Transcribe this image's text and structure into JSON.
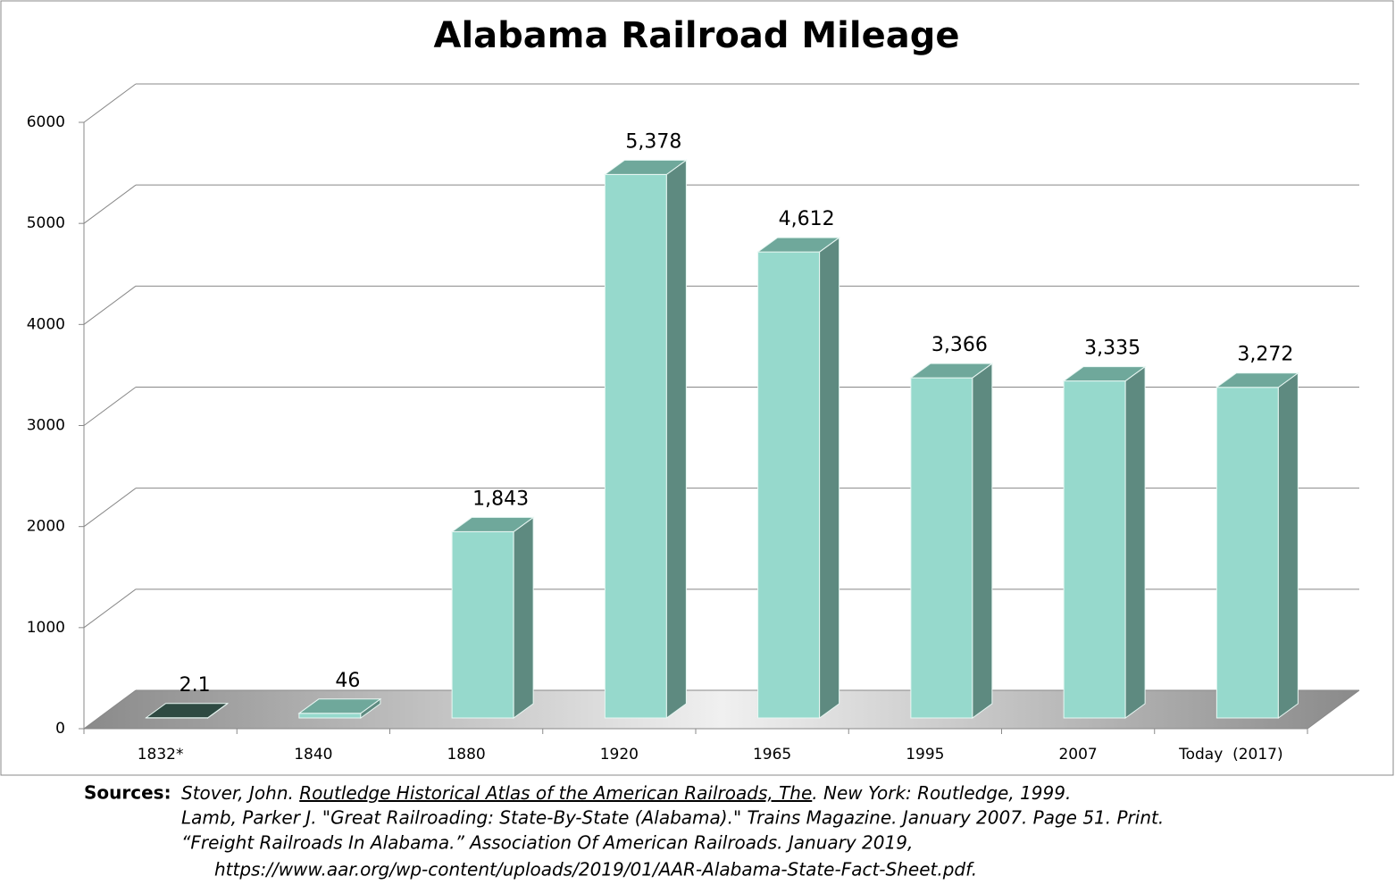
{
  "chart_data": {
    "type": "bar3d",
    "title": "Alabama Railroad Mileage",
    "categories": [
      "1832*",
      "1840",
      "1880",
      "1920",
      "1965",
      "1995",
      "2007",
      "Today  (2017)"
    ],
    "values": [
      2.1,
      46,
      1843,
      5378,
      4612,
      3366,
      3335,
      3272
    ],
    "value_labels": [
      "2.1",
      "46",
      "1,843",
      "5,378",
      "4,612",
      "3,366",
      "3,335",
      "3,272"
    ],
    "color": "#96d9cc",
    "ylim": [
      0,
      6000
    ],
    "yticks": [
      0,
      1000,
      2000,
      3000,
      4000,
      5000,
      6000
    ],
    "grid": true
  },
  "sources": {
    "label": "Sources:",
    "lines": [
      [
        "Stover, John. ",
        "Routledge Historical Atlas of the American Railroads, The",
        ". New York: Routledge, 1999."
      ],
      [
        "Lamb, Parker J. \"Great Railroading: State-By-State (Alabama).\" Trains Magazine. January 2007. Page 51. Print."
      ],
      [
        "“Freight Railroads In Alabama.” Association Of American Railroads. January 2019,"
      ],
      [
        "https://www.aar.org/wp-content/uploads/2019/01/AAR-Alabama-State-Fact-Sheet.pdf."
      ]
    ]
  }
}
